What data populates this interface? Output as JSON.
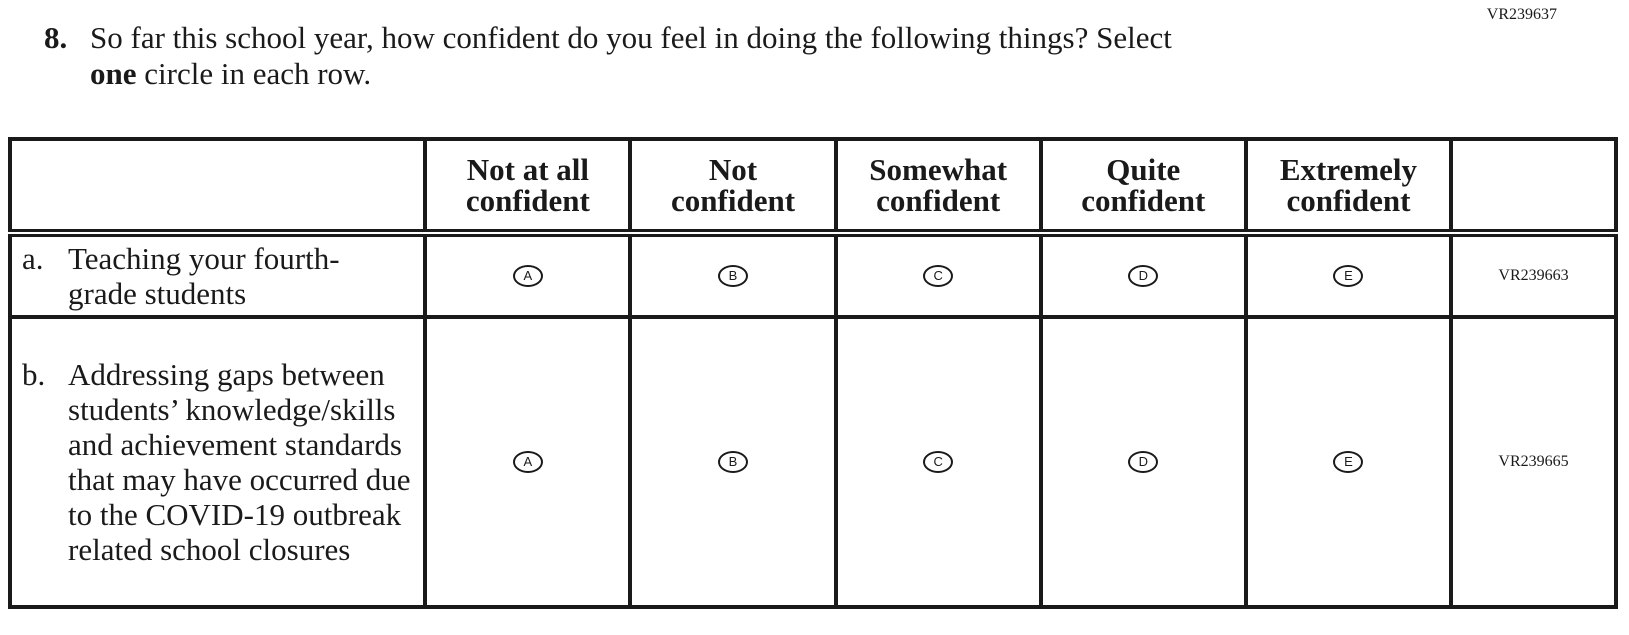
{
  "form_code": "VR239637",
  "question": {
    "number": "8.",
    "text_line1": "So far this school year, how confident do you feel in doing the following things? Select",
    "bold_word": "one",
    "text_line2_rest": " circle in each row."
  },
  "columns": [
    {
      "line1": "Not at all",
      "line2": "confident"
    },
    {
      "line1": "Not",
      "line2": "confident"
    },
    {
      "line1": "Somewhat",
      "line2": "confident"
    },
    {
      "line1": "Quite",
      "line2": "confident"
    },
    {
      "line1": "Extremely",
      "line2": "confident"
    }
  ],
  "rows": [
    {
      "letter": "a.",
      "label": "Teaching your fourth-grade students",
      "options": [
        "A",
        "B",
        "C",
        "D",
        "E"
      ],
      "code": "VR239663"
    },
    {
      "letter": "b.",
      "label": "Addressing gaps between students’ knowledge/skills and achievement standards that may have occurred due to the COVID-19 outbreak related school closures",
      "options": [
        "A",
        "B",
        "C",
        "D",
        "E"
      ],
      "code": "VR239665"
    }
  ]
}
